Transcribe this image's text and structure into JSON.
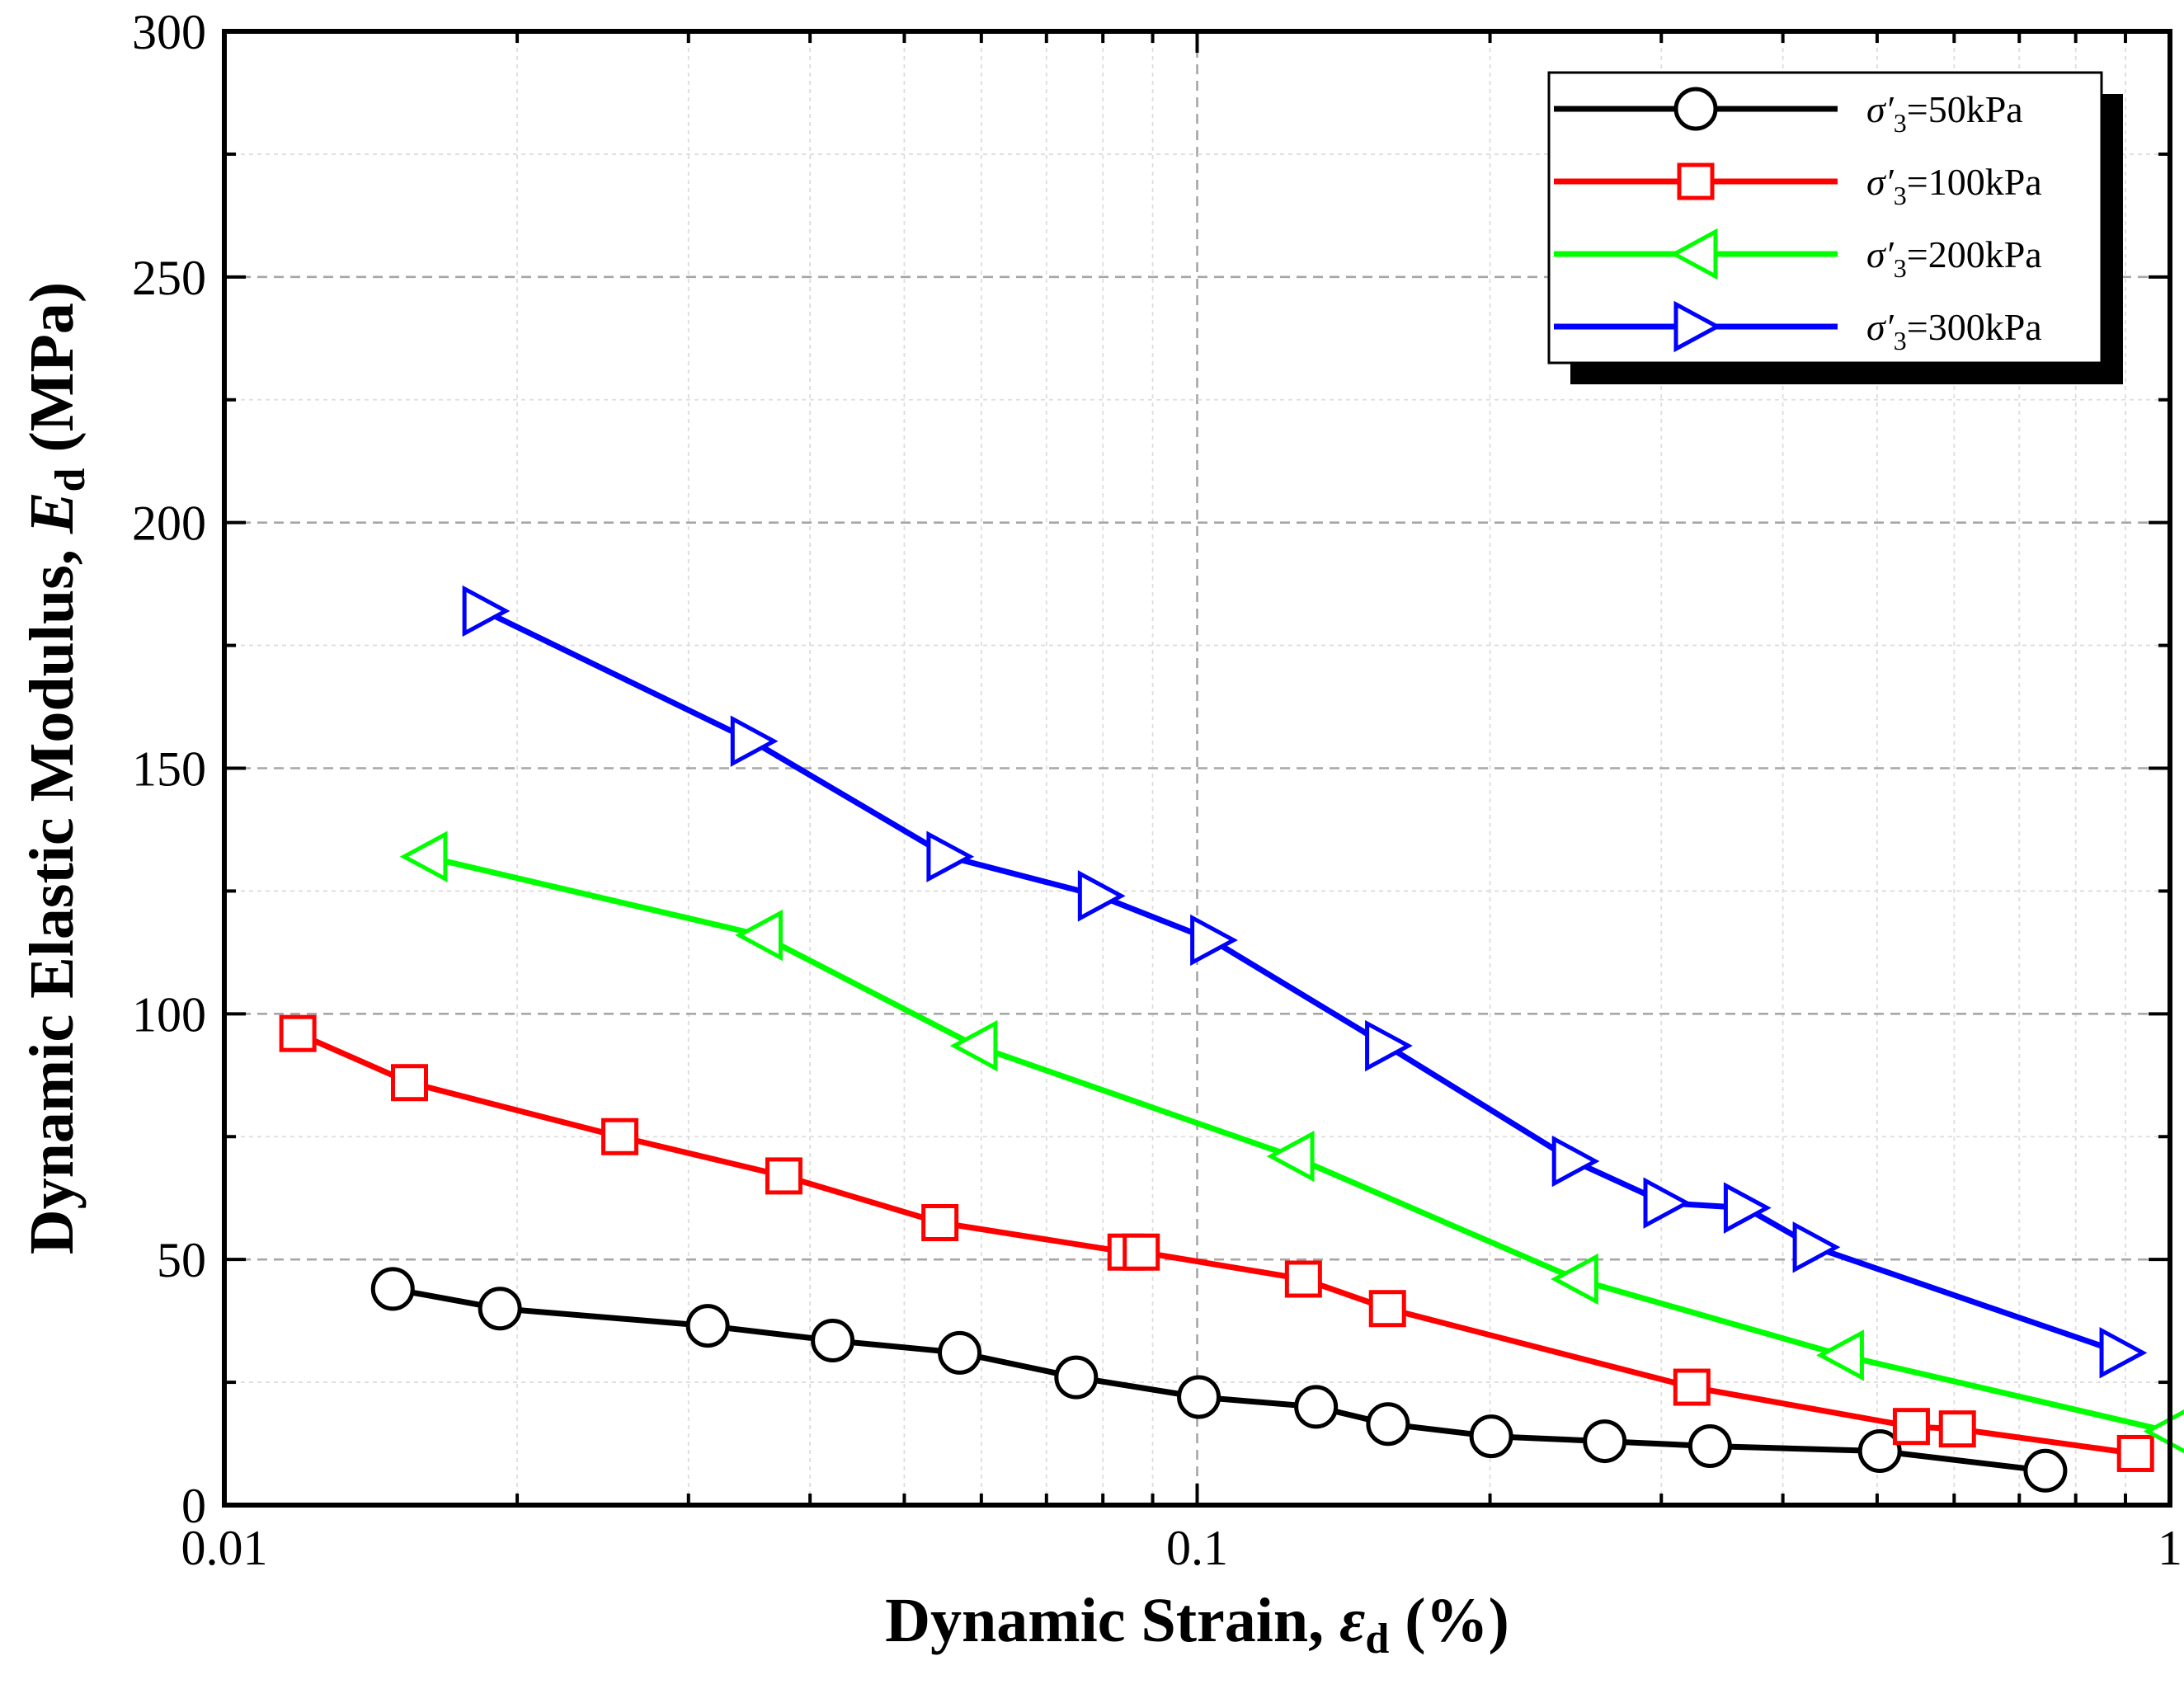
{
  "chart_data": {
    "type": "line",
    "title": "",
    "xlabel": "Dynamic Strain, ε_d (%)",
    "ylabel": "Dynamic Elastic Modulus, E_d (MPa)",
    "xlabel_parts": {
      "pre": "Dynamic Strain, ",
      "sym": "ε",
      "sub": "d",
      "post": " (%)"
    },
    "ylabel_parts": {
      "pre": "Dynamic Elastic Modulus, ",
      "sym": "E",
      "sub": "d",
      "post": " (MPa)"
    },
    "xscale": "log",
    "xlim": [
      0.01,
      1
    ],
    "ylim": [
      0,
      300
    ],
    "x_ticks": [
      0.01,
      0.1,
      1
    ],
    "x_tick_labels": [
      "0.01",
      "0.1",
      "1"
    ],
    "y_ticks": [
      0,
      50,
      100,
      150,
      200,
      250,
      300
    ],
    "y_tick_labels": [
      "0",
      "50",
      "100",
      "150",
      "200",
      "250",
      "300"
    ],
    "grid": true,
    "legend_position": "top-right",
    "series": [
      {
        "name": "σ′3=50kPa",
        "label_sym": "σ′",
        "label_sub": "3",
        "label_rest": "=50kPa",
        "color": "#000000",
        "marker": "circle",
        "x": [
          0.0149,
          0.0192,
          0.0314,
          0.0422,
          0.057,
          0.0751,
          0.1004,
          0.1325,
          0.1571,
          0.2006,
          0.2624,
          0.3367,
          0.5032,
          0.7446
        ],
        "y": [
          44,
          40,
          36.5,
          33.5,
          31,
          26,
          22,
          20,
          16.5,
          14,
          13,
          12,
          11,
          7
        ]
      },
      {
        "name": "σ′3=100kPa",
        "label_sym": "σ′",
        "label_sub": "3",
        "label_rest": "=100kPa",
        "color": "#ff0000",
        "marker": "square",
        "x": [
          0.0119,
          0.0155,
          0.0255,
          0.0376,
          0.0544,
          0.0845,
          0.0876,
          0.1286,
          0.1569,
          0.3225,
          0.5422,
          0.6046,
          0.9217
        ],
        "y": [
          96,
          86,
          75,
          67,
          57.5,
          51.5,
          51.5,
          46,
          40,
          24,
          16,
          15.5,
          10.5
        ]
      },
      {
        "name": "σ′3=200kPa",
        "label_sym": "σ′",
        "label_sub": "3",
        "label_rest": "=200kPa",
        "color": "#00ff00",
        "marker": "triangle-left",
        "x": [
          0.0161,
          0.0356,
          0.0592,
          0.1253,
          0.2454,
          0.4602,
          0.9979
        ],
        "y": [
          132,
          116,
          93.5,
          71,
          46,
          30.5,
          15
        ]
      },
      {
        "name": "σ′3=300kPa",
        "label_sym": "σ′",
        "label_sub": "3",
        "label_rest": "=300kPa",
        "color": "#0000ff",
        "marker": "triangle-right",
        "x": [
          0.0185,
          0.0349,
          0.0555,
          0.0794,
          0.1036,
          0.1567,
          0.2439,
          0.3028,
          0.3662,
          0.4312,
          0.8913
        ],
        "y": [
          182,
          155.5,
          132,
          124,
          115,
          93.5,
          70,
          61.5,
          60.5,
          52.5,
          31
        ]
      }
    ]
  }
}
